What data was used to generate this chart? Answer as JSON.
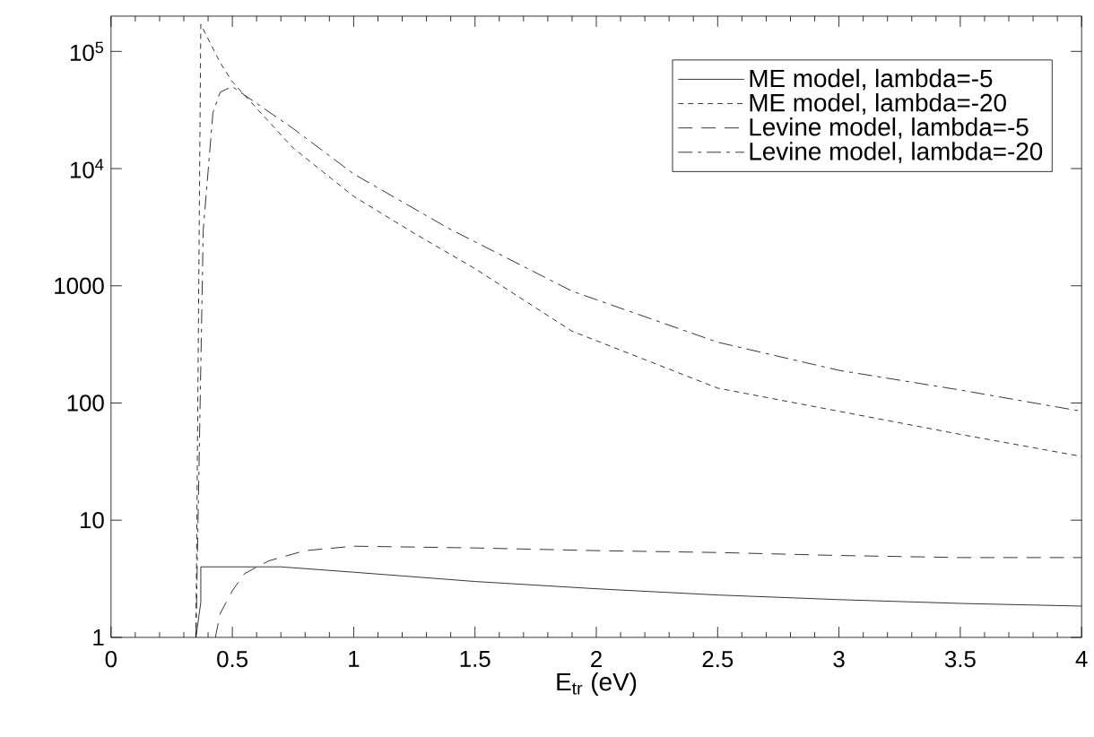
{
  "chart_data": {
    "type": "line",
    "xlabel": "E$_{tr}$ (eV)",
    "log": "y",
    "legend": "top right",
    "grid": false,
    "marker": "none",
    "xlim": [
      0,
      4
    ],
    "xticks": [
      0,
      0.5,
      1,
      1.5,
      2,
      2.5,
      3,
      3.5,
      4
    ],
    "ylim": [
      1,
      200000
    ],
    "yticks": [
      1,
      10,
      100,
      1000,
      {
        "value": 10000,
        "label": "10$^{4}$"
      },
      {
        "value": 100000,
        "label": "10$^{5}$"
      }
    ],
    "series": [
      {
        "name": "ME model, lambda=-5",
        "color": "#000000",
        "line_style": "solid",
        "x": [
          0.35,
          0.37,
          0.37,
          0.5,
          0.7,
          1,
          1.5,
          2,
          2.5,
          3,
          3.5,
          4
        ],
        "values": [
          1,
          2,
          4,
          4,
          4,
          3.6,
          3,
          2.6,
          2.3,
          2.1,
          1.95,
          1.85
        ]
      },
      {
        "name": "ME model, lambda=-20",
        "color": "#000000",
        "line_style": "dotted",
        "x": [
          0.35,
          0.37,
          0.45,
          0.5,
          0.75,
          1,
          1.25,
          1.5,
          1.9,
          2.5,
          3,
          3.5,
          4
        ],
        "values": [
          1,
          170000,
          80000,
          55000,
          15000,
          5800,
          2800,
          1400,
          410,
          134,
          85,
          54,
          35
        ]
      },
      {
        "name": "Levine model, lambda=-5",
        "color": "#000000",
        "line_style": "dashed",
        "x": [
          0.43,
          0.45,
          0.5,
          0.55,
          0.65,
          0.8,
          1,
          1.5,
          2,
          2.5,
          3,
          3.5,
          4
        ],
        "values": [
          1,
          1.6,
          2.5,
          3.5,
          4.5,
          5.5,
          6,
          5.8,
          5.5,
          5.3,
          5,
          4.8,
          4.8
        ]
      },
      {
        "name": "Levine model, lambda=-20",
        "color": "#000000",
        "line_style": "dashdot",
        "x": [
          0.35,
          0.38,
          0.42,
          0.45,
          0.5,
          0.75,
          1,
          1.39,
          1.9,
          2.5,
          3,
          3.5,
          4
        ],
        "values": [
          1,
          3000,
          30000,
          45000,
          50000,
          22000,
          9000,
          3100,
          900,
          330,
          190,
          129,
          85
        ]
      }
    ]
  }
}
